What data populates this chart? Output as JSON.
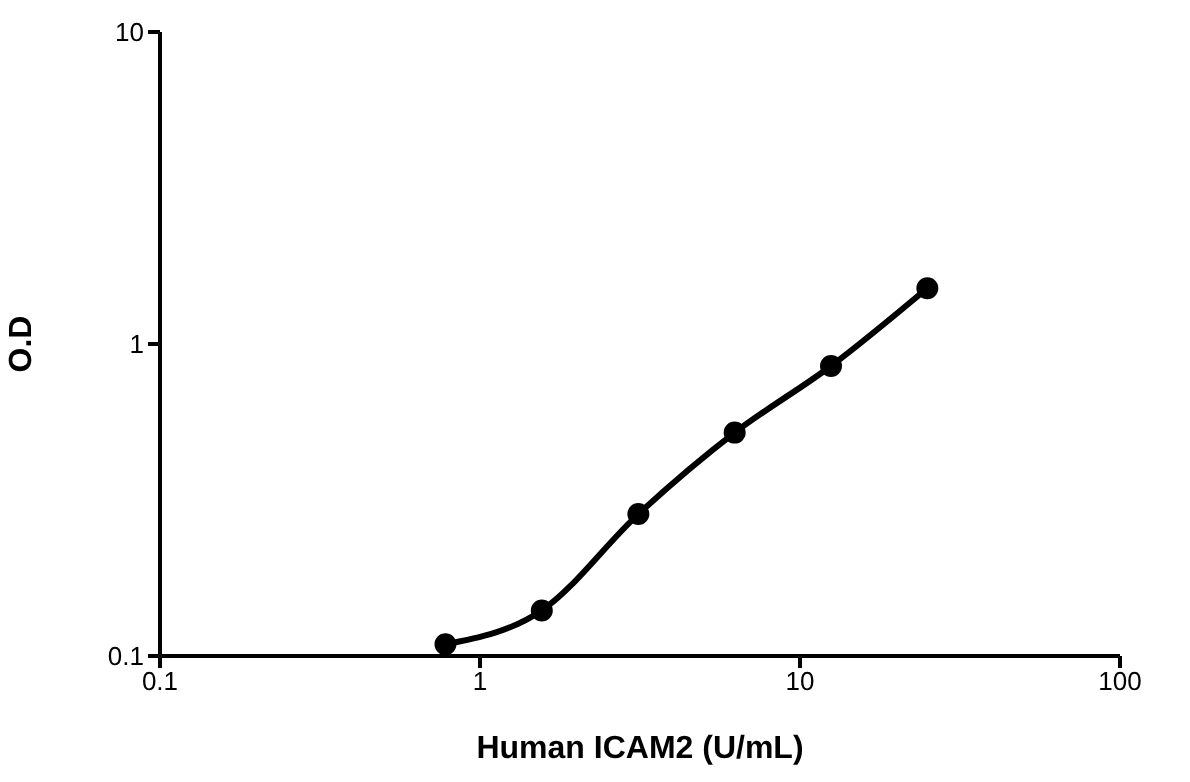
{
  "chart_data": {
    "type": "line",
    "xlabel": "Human ICAM2 (U/mL)",
    "ylabel": "O.D",
    "log": "xy",
    "x": [
      0.78,
      1.56,
      3.125,
      6.25,
      12.5,
      25
    ],
    "series": [
      {
        "color": "#000000",
        "values": [
          0.109,
          0.14,
          0.285,
          0.52,
          0.85,
          1.51
        ]
      }
    ],
    "xlim": [
      0.1,
      100
    ],
    "xticks": [
      0.1,
      1,
      10,
      100
    ],
    "ylim": [
      0.1,
      10
    ],
    "yticks": [
      0.1,
      1,
      10
    ],
    "grid": false,
    "legend": false,
    "marker": "circle",
    "line_style": "solid"
  }
}
